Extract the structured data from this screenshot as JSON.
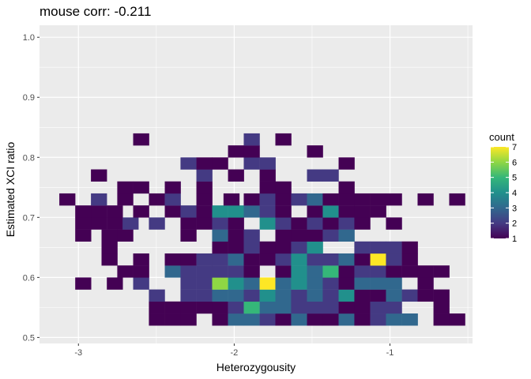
{
  "chart_data": {
    "type": "heatmap",
    "title": "mouse corr: -0.211",
    "xlabel": "Heterozygousity",
    "ylabel": "Estimated XCI ratio",
    "xlim": [
      -3.25,
      -0.47
    ],
    "ylim": [
      0.49,
      1.02
    ],
    "xticks": [
      -3,
      -2,
      -1
    ],
    "yticks": [
      0.5,
      0.6,
      0.7,
      0.8,
      0.9,
      1.0
    ],
    "xtick_labels": [
      "-3",
      "-2",
      "-1"
    ],
    "ytick_labels": [
      "0.5",
      "0.6",
      "0.7",
      "0.8",
      "0.9",
      "1.0"
    ],
    "grid": true,
    "legend": {
      "title": "count",
      "position": "right",
      "breaks": [
        1,
        2,
        3,
        4,
        5,
        6,
        7
      ],
      "break_labels": [
        "1",
        "2",
        "3",
        "4",
        "5",
        "6",
        "7"
      ],
      "range": [
        1,
        7
      ]
    },
    "colormap": [
      "#440154",
      "#443A83",
      "#31688E",
      "#21908C",
      "#35B779",
      "#8FD744",
      "#FDE725"
    ],
    "bins": {
      "x_start": -3.155,
      "x_width": 0.1015,
      "y_start": 0.5205,
      "y_width": 0.0199,
      "cells": [
        [
          -2.497,
          0.53,
          1
        ],
        [
          -2.395,
          0.53,
          1
        ],
        [
          -2.294,
          0.53,
          1
        ],
        [
          -2.091,
          0.53,
          1
        ],
        [
          -1.989,
          0.53,
          3
        ],
        [
          -1.888,
          0.53,
          3
        ],
        [
          -1.786,
          0.53,
          2
        ],
        [
          -1.685,
          0.53,
          1
        ],
        [
          -1.584,
          0.53,
          3
        ],
        [
          -1.482,
          0.53,
          1
        ],
        [
          -1.381,
          0.53,
          1
        ],
        [
          -1.279,
          0.53,
          3
        ],
        [
          -1.178,
          0.53,
          1
        ],
        [
          -1.076,
          0.53,
          2
        ],
        [
          -0.975,
          0.53,
          3
        ],
        [
          -0.873,
          0.53,
          3
        ],
        [
          -0.67,
          0.53,
          1
        ],
        [
          -0.569,
          0.53,
          1
        ],
        [
          -2.497,
          0.55,
          1
        ],
        [
          -2.395,
          0.55,
          1
        ],
        [
          -2.294,
          0.55,
          1
        ],
        [
          -2.192,
          0.55,
          1
        ],
        [
          -2.091,
          0.55,
          1
        ],
        [
          -1.989,
          0.55,
          2
        ],
        [
          -1.888,
          0.55,
          5
        ],
        [
          -1.786,
          0.55,
          3
        ],
        [
          -1.685,
          0.55,
          3
        ],
        [
          -1.584,
          0.55,
          2
        ],
        [
          -1.482,
          0.55,
          2
        ],
        [
          -1.381,
          0.55,
          2
        ],
        [
          -1.279,
          0.55,
          1
        ],
        [
          -1.178,
          0.55,
          1
        ],
        [
          -1.076,
          0.55,
          2
        ],
        [
          -0.975,
          0.55,
          2
        ],
        [
          -0.67,
          0.55,
          1
        ],
        [
          -2.497,
          0.57,
          2
        ],
        [
          -2.294,
          0.57,
          2
        ],
        [
          -2.192,
          0.57,
          2
        ],
        [
          -2.091,
          0.57,
          3
        ],
        [
          -1.989,
          0.57,
          3
        ],
        [
          -1.888,
          0.57,
          2
        ],
        [
          -1.786,
          0.57,
          4
        ],
        [
          -1.685,
          0.57,
          3
        ],
        [
          -1.584,
          0.57,
          2
        ],
        [
          -1.482,
          0.57,
          3
        ],
        [
          -1.381,
          0.57,
          2
        ],
        [
          -1.279,
          0.57,
          4
        ],
        [
          -1.178,
          0.57,
          1
        ],
        [
          -1.076,
          0.57,
          1
        ],
        [
          -0.975,
          0.57,
          3
        ],
        [
          -0.873,
          0.57,
          2
        ],
        [
          -0.772,
          0.57,
          1
        ],
        [
          -0.67,
          0.57,
          1
        ],
        [
          -2.97,
          0.59,
          1
        ],
        [
          -2.767,
          0.59,
          1
        ],
        [
          -2.598,
          0.59,
          2
        ],
        [
          -2.294,
          0.59,
          2
        ],
        [
          -2.192,
          0.59,
          2
        ],
        [
          -2.091,
          0.59,
          6
        ],
        [
          -1.989,
          0.59,
          4
        ],
        [
          -1.888,
          0.59,
          3
        ],
        [
          -1.786,
          0.59,
          7
        ],
        [
          -1.685,
          0.59,
          3
        ],
        [
          -1.584,
          0.59,
          4
        ],
        [
          -1.482,
          0.59,
          3
        ],
        [
          -1.381,
          0.59,
          2
        ],
        [
          -1.279,
          0.59,
          1
        ],
        [
          -1.178,
          0.59,
          3
        ],
        [
          -1.076,
          0.59,
          3
        ],
        [
          -0.975,
          0.59,
          3
        ],
        [
          -0.772,
          0.59,
          1
        ],
        [
          -2.7,
          0.61,
          1
        ],
        [
          -2.598,
          0.61,
          1
        ],
        [
          -2.395,
          0.61,
          3
        ],
        [
          -2.294,
          0.61,
          2
        ],
        [
          -2.192,
          0.61,
          2
        ],
        [
          -2.091,
          0.61,
          2
        ],
        [
          -1.989,
          0.61,
          2
        ],
        [
          -1.888,
          0.61,
          1
        ],
        [
          -1.685,
          0.61,
          1
        ],
        [
          -1.584,
          0.61,
          4
        ],
        [
          -1.482,
          0.61,
          3
        ],
        [
          -1.381,
          0.61,
          5
        ],
        [
          -1.279,
          0.61,
          1
        ],
        [
          -1.178,
          0.61,
          2
        ],
        [
          -1.076,
          0.61,
          2
        ],
        [
          -0.975,
          0.61,
          1
        ],
        [
          -0.873,
          0.61,
          1
        ],
        [
          -0.772,
          0.61,
          1
        ],
        [
          -0.67,
          0.61,
          1
        ],
        [
          -2.801,
          0.63,
          1
        ],
        [
          -2.598,
          0.63,
          1
        ],
        [
          -2.395,
          0.63,
          1
        ],
        [
          -2.294,
          0.63,
          1
        ],
        [
          -2.192,
          0.63,
          2
        ],
        [
          -2.091,
          0.63,
          2
        ],
        [
          -1.989,
          0.63,
          3
        ],
        [
          -1.888,
          0.63,
          1
        ],
        [
          -1.786,
          0.63,
          1
        ],
        [
          -1.685,
          0.63,
          2
        ],
        [
          -1.584,
          0.63,
          4
        ],
        [
          -1.482,
          0.63,
          2
        ],
        [
          -1.381,
          0.63,
          2
        ],
        [
          -1.279,
          0.63,
          3
        ],
        [
          -1.178,
          0.63,
          1
        ],
        [
          -1.076,
          0.63,
          7
        ],
        [
          -0.975,
          0.63,
          2
        ],
        [
          -0.873,
          0.63,
          1
        ],
        [
          -2.801,
          0.65,
          1
        ],
        [
          -2.091,
          0.65,
          1
        ],
        [
          -1.989,
          0.65,
          1
        ],
        [
          -1.888,
          0.65,
          2
        ],
        [
          -1.786,
          0.65,
          1
        ],
        [
          -1.685,
          0.65,
          1
        ],
        [
          -1.584,
          0.65,
          2
        ],
        [
          -1.482,
          0.65,
          4
        ],
        [
          -1.178,
          0.65,
          2
        ],
        [
          -1.076,
          0.65,
          2
        ],
        [
          -0.975,
          0.65,
          2
        ],
        [
          -0.873,
          0.65,
          1
        ],
        [
          -2.97,
          0.67,
          1
        ],
        [
          -2.801,
          0.67,
          1
        ],
        [
          -2.7,
          0.67,
          1
        ],
        [
          -2.294,
          0.67,
          1
        ],
        [
          -2.091,
          0.67,
          3
        ],
        [
          -1.989,
          0.67,
          1
        ],
        [
          -1.888,
          0.67,
          2
        ],
        [
          -1.685,
          0.67,
          1
        ],
        [
          -1.584,
          0.67,
          1
        ],
        [
          -1.482,
          0.67,
          1
        ],
        [
          -1.381,
          0.67,
          2
        ],
        [
          -1.279,
          0.67,
          3
        ],
        [
          -2.97,
          0.69,
          1
        ],
        [
          -2.869,
          0.69,
          1
        ],
        [
          -2.767,
          0.69,
          1
        ],
        [
          -2.666,
          0.69,
          2
        ],
        [
          -2.497,
          0.69,
          2
        ],
        [
          -2.294,
          0.69,
          1
        ],
        [
          -2.192,
          0.69,
          1
        ],
        [
          -2.091,
          0.69,
          2
        ],
        [
          -1.989,
          0.69,
          1
        ],
        [
          -1.786,
          0.69,
          4
        ],
        [
          -1.685,
          0.69,
          2
        ],
        [
          -1.584,
          0.69,
          1
        ],
        [
          -1.482,
          0.69,
          2
        ],
        [
          -1.381,
          0.69,
          1
        ],
        [
          -1.279,
          0.69,
          2
        ],
        [
          -1.178,
          0.69,
          1
        ],
        [
          -0.975,
          0.69,
          1
        ],
        [
          -2.97,
          0.71,
          1
        ],
        [
          -2.869,
          0.71,
          1
        ],
        [
          -2.767,
          0.71,
          1
        ],
        [
          -2.598,
          0.71,
          1
        ],
        [
          -2.395,
          0.71,
          1
        ],
        [
          -2.294,
          0.71,
          2
        ],
        [
          -2.192,
          0.71,
          1
        ],
        [
          -2.091,
          0.71,
          4
        ],
        [
          -1.989,
          0.71,
          4
        ],
        [
          -1.888,
          0.71,
          3
        ],
        [
          -1.786,
          0.71,
          2
        ],
        [
          -1.685,
          0.71,
          1
        ],
        [
          -1.482,
          0.71,
          1
        ],
        [
          -1.381,
          0.71,
          4
        ],
        [
          -1.279,
          0.71,
          1
        ],
        [
          -1.178,
          0.71,
          1
        ],
        [
          -1.076,
          0.71,
          1
        ],
        [
          -3.072,
          0.73,
          1
        ],
        [
          -2.869,
          0.73,
          2
        ],
        [
          -2.7,
          0.73,
          1
        ],
        [
          -2.497,
          0.73,
          1
        ],
        [
          -2.395,
          0.73,
          2
        ],
        [
          -2.192,
          0.73,
          1
        ],
        [
          -2.018,
          0.73,
          1
        ],
        [
          -1.888,
          0.73,
          1
        ],
        [
          -1.786,
          0.73,
          2
        ],
        [
          -1.685,
          0.73,
          1
        ],
        [
          -1.584,
          0.73,
          2
        ],
        [
          -1.482,
          0.73,
          3
        ],
        [
          -1.381,
          0.73,
          1
        ],
        [
          -1.279,
          0.73,
          1
        ],
        [
          -1.178,
          0.73,
          1
        ],
        [
          -1.076,
          0.73,
          1
        ],
        [
          -0.975,
          0.73,
          1
        ],
        [
          -0.772,
          0.73,
          1
        ],
        [
          -0.569,
          0.73,
          1
        ],
        [
          -2.7,
          0.75,
          1
        ],
        [
          -2.598,
          0.75,
          1
        ],
        [
          -2.395,
          0.75,
          1
        ],
        [
          -2.192,
          0.75,
          1
        ],
        [
          -1.786,
          0.75,
          1
        ],
        [
          -1.685,
          0.75,
          1
        ],
        [
          -1.279,
          0.75,
          1
        ],
        [
          -2.869,
          0.77,
          1
        ],
        [
          -2.192,
          0.77,
          2
        ],
        [
          -1.989,
          0.77,
          1
        ],
        [
          -1.786,
          0.77,
          1
        ],
        [
          -1.482,
          0.77,
          2
        ],
        [
          -1.381,
          0.77,
          2
        ],
        [
          -2.294,
          0.79,
          2
        ],
        [
          -2.192,
          0.79,
          1
        ],
        [
          -2.091,
          0.79,
          1
        ],
        [
          -1.888,
          0.79,
          2
        ],
        [
          -1.786,
          0.79,
          2
        ],
        [
          -1.279,
          0.79,
          1
        ],
        [
          -1.989,
          0.81,
          1
        ],
        [
          -1.888,
          0.81,
          1
        ],
        [
          -1.482,
          0.81,
          1
        ],
        [
          -2.598,
          0.83,
          1
        ],
        [
          -1.888,
          0.83,
          2
        ],
        [
          -1.685,
          0.83,
          1
        ]
      ]
    }
  }
}
